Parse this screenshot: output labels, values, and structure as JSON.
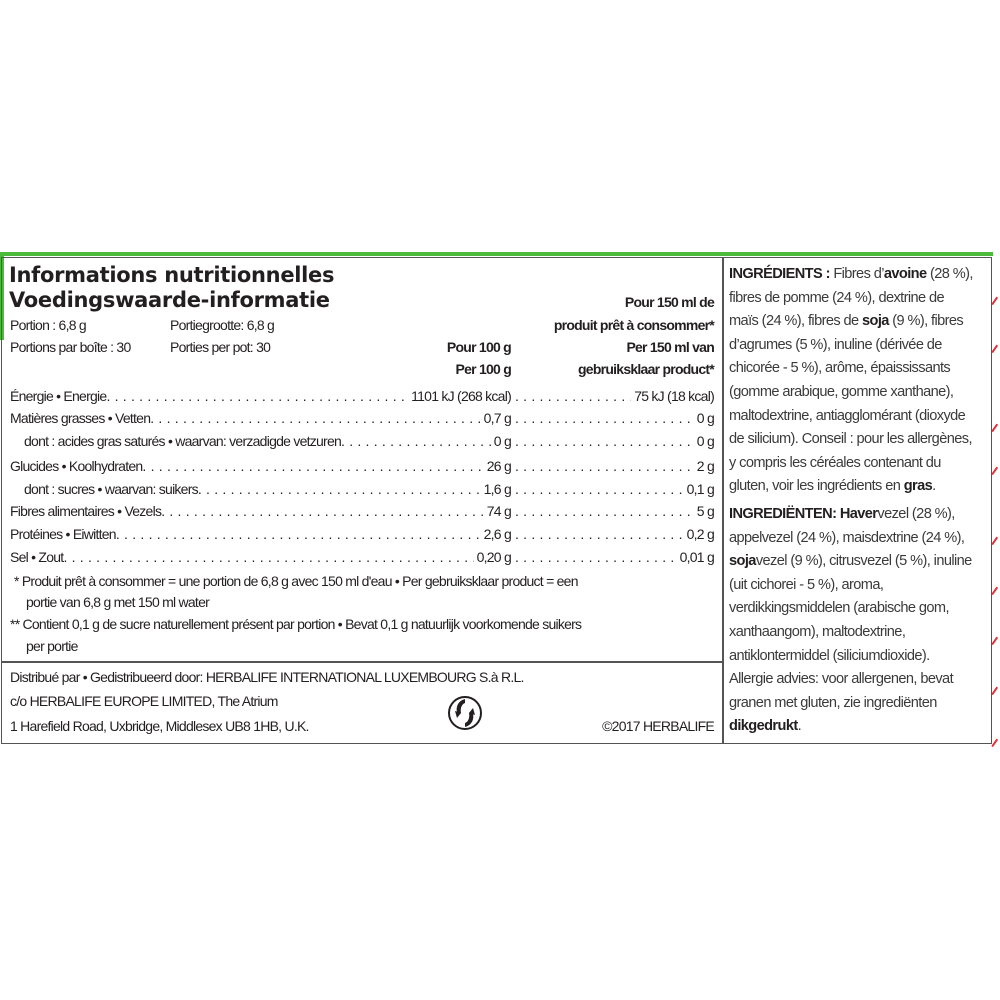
{
  "colors": {
    "accent_green": "#4cbb3c",
    "border": "#555555",
    "tick_red": "#e0303a"
  },
  "title_fr": "Informations nutritionnelles",
  "title_nl": "Voedingswaarde-informatie",
  "portion_fr": "Portion : 6,8 g",
  "portion_nl": "Portiegrootte: 6,8 g",
  "portions_box_fr": "Portions par boîte : 30",
  "portions_box_nl": "Porties per pot: 30",
  "col1_header": [
    "Pour 100 g",
    "Per 100 g"
  ],
  "col2_header": [
    "Pour 150 ml de",
    "produit prêt à consommer*",
    "Per 150 ml van",
    "gebruiksklaar product*"
  ],
  "rows": [
    {
      "label": "Énergie • Energie",
      "per100": "1101 kJ (268 kcal)",
      "per150": "75 kJ (18 kcal)",
      "indent": false
    },
    {
      "label": "Matières grasses • Vetten",
      "per100": "0,7 g",
      "per150": "0 g",
      "indent": false
    },
    {
      "label": "dont : acides gras saturés • waarvan: verzadigde vetzuren",
      "per100": "0 g",
      "per150": "0 g",
      "indent": true
    },
    {
      "label": "Glucides • Koolhydraten",
      "per100": "26 g",
      "per150": "2 g",
      "indent": false
    },
    {
      "label": "dont : sucres • waarvan: suikers",
      "per100": "1,6 g",
      "per150": "0,1 g",
      "indent": true
    },
    {
      "label": "Fibres alimentaires • Vezels",
      "per100": "74 g",
      "per150": "5 g",
      "indent": false
    },
    {
      "label": "Protéines • Eiwitten",
      "per100": "2,6 g",
      "per150": "0,2 g",
      "indent": false
    },
    {
      "label": "Sel • Zout",
      "per100": "0,20 g",
      "per150": "0,01 g",
      "indent": false
    }
  ],
  "footnotes": [
    "* Produit prêt à consommer = une portion de 6,8 g avec 150 ml d'eau • Per gebruiksklaar product = een",
    "portie van 6,8 g met 150 ml water",
    "** Contient 0,1 g de sucre naturellement présent par portion • Bevat 0,1 g natuurlijk voorkomende suikers",
    "per portie"
  ],
  "footer": {
    "line1": "Distribué par • Gedistribueerd door: HERBALIFE INTERNATIONAL LUXEMBOURG S.à R.L.",
    "line2": "c/o HERBALIFE EUROPE LIMITED, The Atrium",
    "line3": "1 Harefield Road, Uxbridge, Middlesex UB8 1HB, U.K.",
    "copyright": "©2017 HERBALIFE",
    "icon": "green-dot-recycle-icon"
  },
  "ingredients_fr": [
    [
      {
        "t": "INGRÉDIENTS :",
        "b": true
      },
      {
        "t": " Fibres d’"
      },
      {
        "t": "avoine",
        "b": true
      },
      {
        "t": " (28 %),"
      }
    ],
    [
      {
        "t": "fibres de pomme (24 %), dextrine de"
      }
    ],
    [
      {
        "t": "maïs (24 %), fibres de "
      },
      {
        "t": "soja",
        "b": true
      },
      {
        "t": " (9 %), fibres"
      }
    ],
    [
      {
        "t": "d’agrumes (5 %), inuline (dérivée de"
      }
    ],
    [
      {
        "t": "chicorée - 5 %), arôme, épaississants"
      }
    ],
    [
      {
        "t": "(gomme arabique, gomme xanthane),"
      }
    ],
    [
      {
        "t": "maltodextrine, antiagglomérant (dioxyde"
      }
    ],
    [
      {
        "t": "de silicium). Conseil : pour les allergènes,"
      }
    ],
    [
      {
        "t": "y compris les céréales contenant du"
      }
    ],
    [
      {
        "t": "gluten, voir les ingrédients en "
      },
      {
        "t": "gras",
        "b": true
      },
      {
        "t": "."
      }
    ]
  ],
  "ingredients_nl": [
    [
      {
        "t": "INGREDIËNTEN:",
        "b": true
      },
      {
        "t": " "
      },
      {
        "t": "Haver",
        "b": true
      },
      {
        "t": "vezel (28 %),"
      }
    ],
    [
      {
        "t": "appelvezel (24 %), maisdextrine (24 %),"
      }
    ],
    [
      {
        "t": "soja",
        "b": true
      },
      {
        "t": "vezel (9 %), citrusvezel (5 %), inuline"
      }
    ],
    [
      {
        "t": "(uit cichorei - 5 %), aroma,"
      }
    ],
    [
      {
        "t": "verdikkingsmiddelen (arabische gom,"
      }
    ],
    [
      {
        "t": "xanthaangom), maltodextrine,"
      }
    ],
    [
      {
        "t": "antiklontermiddel (siliciumdioxide)."
      }
    ],
    [
      {
        "t": "Allergie advies: voor allergenen, bevat"
      }
    ],
    [
      {
        "t": "granen met gluten, zie ingrediënten"
      }
    ],
    [
      {
        "t": "dikgedrukt",
        "b": true
      },
      {
        "t": "."
      }
    ]
  ]
}
